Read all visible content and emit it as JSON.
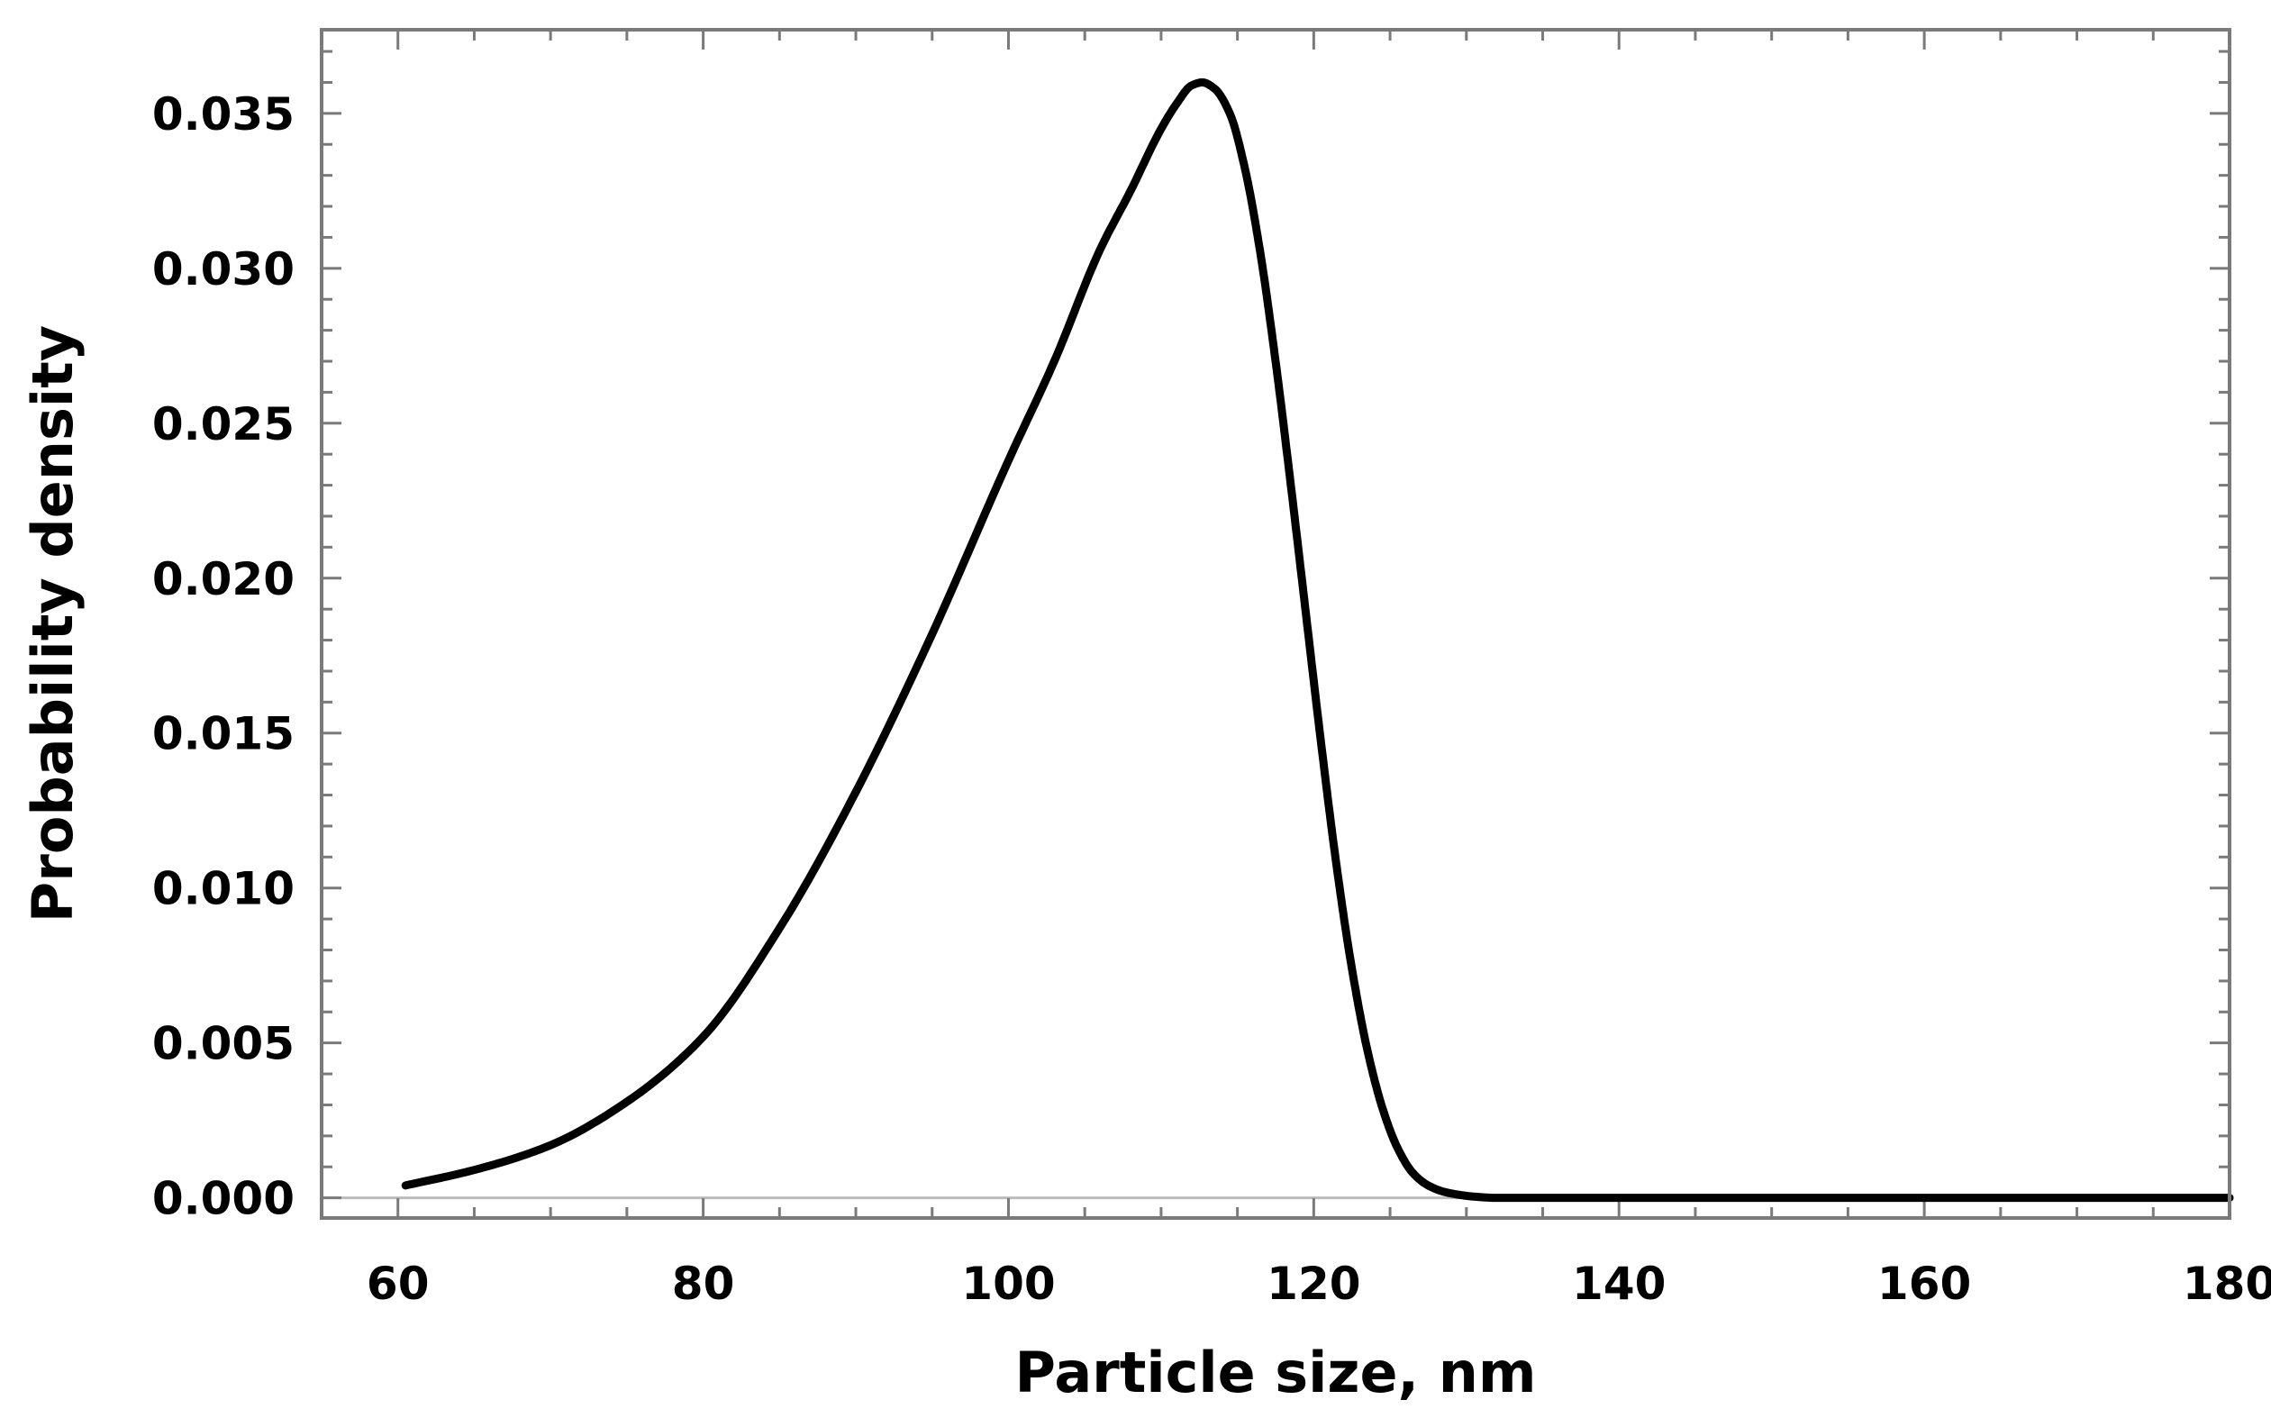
{
  "chart_data": {
    "type": "line",
    "title": "",
    "xlabel": "Particle size, nm",
    "ylabel": "Probability density",
    "xlim": [
      55,
      180
    ],
    "ylim": [
      -0.00065,
      0.0377
    ],
    "grid": false,
    "x_ticks": [
      60,
      80,
      100,
      120,
      140,
      160,
      180
    ],
    "x_tick_labels": [
      "60",
      "80",
      "100",
      "120",
      "140",
      "160",
      "180"
    ],
    "y_ticks": [
      0.0,
      0.005,
      0.01,
      0.015,
      0.02,
      0.025,
      0.03,
      0.035
    ],
    "y_tick_labels": [
      "0.000",
      "0.005",
      "0.010",
      "0.015",
      "0.020",
      "0.025",
      "0.030",
      "0.035"
    ],
    "x_minor_step": 5,
    "y_minor_step": 0.001,
    "series": [
      {
        "name": "Probability density",
        "color": "#000000",
        "x": [
          60.5,
          65,
          70,
          75,
          80,
          85,
          90,
          95,
          100,
          103,
          106,
          108,
          110,
          111,
          112,
          112.7,
          113.5,
          114.5,
          115.5,
          116.5,
          117.5,
          118.5,
          119.5,
          120.5,
          121.5,
          122.5,
          123.5,
          124.5,
          125.5,
          126.5,
          127.5,
          128.5,
          129.5,
          130.5,
          132,
          135,
          140,
          150,
          160,
          170,
          180
        ],
        "y": [
          0.0004,
          0.0009,
          0.0017,
          0.0031,
          0.0052,
          0.0087,
          0.0131,
          0.0182,
          0.0238,
          0.027,
          0.0306,
          0.0325,
          0.0345,
          0.0353,
          0.0359,
          0.036,
          0.0358,
          0.035,
          0.0332,
          0.0305,
          0.027,
          0.023,
          0.0188,
          0.0146,
          0.0107,
          0.0074,
          0.0048,
          0.0029,
          0.0016,
          0.0008,
          0.0004,
          0.0002,
          0.0001,
          4e-05,
          0.0,
          0.0,
          0.0,
          0.0,
          0.0,
          0.0,
          0.0
        ]
      }
    ]
  }
}
